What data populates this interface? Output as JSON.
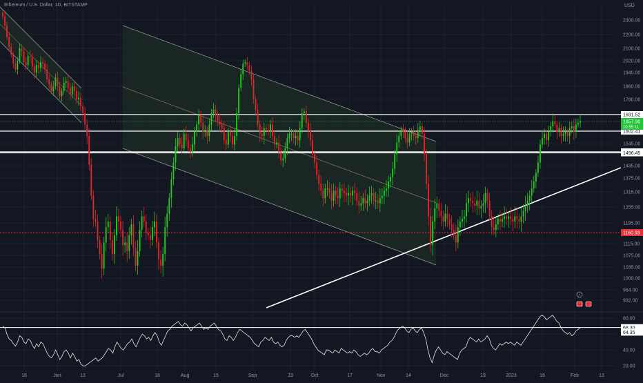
{
  "header": {
    "title": "Ethereum / U.S. Dollar, 1D, BITSTAMP"
  },
  "price_axis": {
    "unit": "USD"
  },
  "colors": {
    "background": "#131722",
    "up": "#26c826",
    "down": "#e3242b",
    "grid": "#1e222d",
    "channel_fill": "#1f3324",
    "channel_line": "#c8cfc0",
    "midline": "#b08f63",
    "current_label": "#23c43a",
    "red_label": "#e3303b",
    "rsi_line": "#e6e6e6"
  },
  "icons": [
    "lightning-icon",
    "calendar-flag-icon",
    "calendar-flag-icon"
  ],
  "chart_data": [
    {
      "type": "candlestick",
      "title": "",
      "x_tick_labels": [
        "16",
        "Jun",
        "13",
        "Jul",
        "18",
        "Aug",
        "15",
        "Sep",
        "19",
        "Oct",
        "17",
        "Nov",
        "14",
        "Dec",
        "19",
        "2023",
        "16",
        "Feb",
        "13"
      ],
      "y_tick_labels": [
        2300,
        2200,
        2100,
        2020,
        1940,
        1860,
        1780,
        1545,
        1435,
        1375,
        1315,
        1255,
        1195,
        1115,
        1075,
        1035,
        1000,
        964,
        932
      ],
      "y_tick_display": [
        "2300.00",
        "2200.00",
        "2100.00",
        "2020.00",
        "1940.00",
        "1860.00",
        "1780.00",
        "1545.00",
        "1435.00",
        "1375.00",
        "1315.00",
        "1255.00",
        "1195.00",
        "1115.00",
        "1075.00",
        "1035.00",
        "1000.00",
        "964.00",
        "932.00"
      ],
      "ylim": [
        905,
        2380
      ],
      "horizontal_lines": [
        {
          "value": 1691.52,
          "label": "1691.52"
        },
        {
          "value": 1602.41,
          "label": "1602.41"
        },
        {
          "value": 1501.53,
          "label": "1501.53"
        },
        {
          "value": 1496.45,
          "label": "1496.45"
        }
      ],
      "current_price": {
        "value": 1657.9,
        "label": "1657.90",
        "countdown": "10:55:11"
      },
      "dotted_level": {
        "value": 1160.93,
        "label": "1160.93"
      },
      "candles_close": [
        2320,
        2260,
        2180,
        2110,
        2060,
        2000,
        1960,
        2020,
        2100,
        2080,
        2010,
        1990,
        2050,
        2040,
        1980,
        1940,
        1990,
        1970,
        2010,
        2000,
        1960,
        1900,
        1870,
        1830,
        1860,
        1910,
        1860,
        1800,
        1830,
        1880,
        1890,
        1850,
        1810,
        1860,
        1830,
        1780,
        1790,
        1740,
        1700,
        1640,
        1580,
        1440,
        1300,
        1210,
        1200,
        1130,
        1080,
        1030,
        1120,
        1180,
        1200,
        1130,
        1080,
        1150,
        1220,
        1200,
        1170,
        1110,
        1120,
        1090,
        1150,
        1190,
        1100,
        1040,
        1090,
        1170,
        1220,
        1200,
        1160,
        1150,
        1130,
        1180,
        1200,
        1120,
        1060,
        1040,
        1080,
        1180,
        1230,
        1290,
        1370,
        1450,
        1530,
        1570,
        1540,
        1520,
        1590,
        1560,
        1520,
        1500,
        1540,
        1600,
        1640,
        1690,
        1650,
        1600,
        1610,
        1580,
        1640,
        1700,
        1720,
        1690,
        1660,
        1640,
        1620,
        1560,
        1540,
        1600,
        1580,
        1540,
        1580,
        1700,
        1850,
        1930,
        2000,
        2010,
        1990,
        1950,
        1900,
        1780,
        1720,
        1640,
        1590,
        1580,
        1620,
        1610,
        1600,
        1640,
        1580,
        1540,
        1550,
        1500,
        1460,
        1470,
        1520,
        1570,
        1590,
        1590,
        1570,
        1580,
        1560,
        1620,
        1700,
        1710,
        1650,
        1610,
        1560,
        1490,
        1450,
        1390,
        1350,
        1320,
        1290,
        1330,
        1330,
        1310,
        1280,
        1320,
        1300,
        1290,
        1330,
        1320,
        1310,
        1300,
        1310,
        1300,
        1320,
        1310,
        1280,
        1260,
        1270,
        1290,
        1270,
        1280,
        1300,
        1310,
        1280,
        1280,
        1270,
        1290,
        1300,
        1320,
        1330,
        1360,
        1380,
        1420,
        1490,
        1550,
        1580,
        1610,
        1600,
        1570,
        1550,
        1590,
        1600,
        1580,
        1570,
        1610,
        1630,
        1590,
        1490,
        1350,
        1220,
        1110,
        1200,
        1250,
        1270,
        1240,
        1220,
        1200,
        1230,
        1210,
        1190,
        1170,
        1150,
        1120,
        1180,
        1200,
        1210,
        1220,
        1270,
        1290,
        1280,
        1270,
        1260,
        1280,
        1250,
        1260,
        1270,
        1310,
        1280,
        1220,
        1180,
        1170,
        1190,
        1210,
        1200,
        1210,
        1220,
        1210,
        1220,
        1210,
        1200,
        1220,
        1210,
        1200,
        1220,
        1240,
        1260,
        1280,
        1300,
        1330,
        1360,
        1400,
        1450,
        1540,
        1570,
        1590,
        1560,
        1600,
        1630,
        1660,
        1640,
        1600,
        1620,
        1580,
        1590,
        1600,
        1580,
        1620,
        1630,
        1600,
        1640,
        1650,
        1660
      ]
    },
    {
      "type": "line",
      "title": "",
      "name": "RSI",
      "y_tick_labels": [
        80.0,
        60.0,
        40.0,
        20.0
      ],
      "y_tick_display": [
        "80.00",
        "60.00",
        "40.00",
        "20.00"
      ],
      "ylim": [
        15,
        88
      ],
      "guide_lines": [
        68.3
      ],
      "value_labels": [
        "68.30",
        "64.35"
      ],
      "series": [
        {
          "values": [
            70,
            68,
            60,
            54,
            52,
            48,
            45,
            50,
            58,
            56,
            50,
            48,
            54,
            52,
            46,
            42,
            48,
            44,
            50,
            48,
            42,
            36,
            32,
            30,
            34,
            40,
            34,
            28,
            32,
            38,
            40,
            36,
            30,
            36,
            32,
            26,
            28,
            22,
            20,
            20,
            22,
            24,
            26,
            28,
            30,
            26,
            28,
            30,
            34,
            38,
            42,
            40,
            36,
            44,
            50,
            46,
            42,
            40,
            44,
            48,
            50,
            54,
            48,
            44,
            50,
            56,
            60,
            58,
            54,
            56,
            52,
            58,
            62,
            58,
            50,
            46,
            52,
            58,
            64,
            66,
            70,
            72,
            74,
            76,
            72,
            70,
            74,
            72,
            68,
            64,
            68,
            70,
            72,
            74,
            70,
            66,
            68,
            66,
            70,
            72,
            74,
            70,
            66,
            64,
            60,
            54,
            52,
            58,
            56,
            52,
            56,
            62,
            66,
            64,
            62,
            60,
            58,
            56,
            52,
            48,
            46,
            44,
            50,
            52,
            56,
            54,
            52,
            56,
            50,
            48,
            50,
            46,
            44,
            46,
            52,
            56,
            58,
            58,
            56,
            58,
            56,
            60,
            64,
            66,
            62,
            58,
            54,
            48,
            44,
            40,
            38,
            36,
            34,
            40,
            40,
            38,
            36,
            40,
            38,
            36,
            42,
            40,
            38,
            36,
            38,
            36,
            40,
            38,
            34,
            32,
            34,
            36,
            34,
            36,
            40,
            42,
            38,
            38,
            36,
            40,
            42,
            44,
            46,
            50,
            52,
            56,
            62,
            66,
            68,
            70,
            68,
            64,
            62,
            66,
            68,
            64,
            62,
            66,
            68,
            62,
            54,
            40,
            30,
            24,
            34,
            40,
            44,
            40,
            36,
            34,
            38,
            36,
            34,
            32,
            30,
            28,
            36,
            40,
            42,
            44,
            52,
            56,
            54,
            52,
            50,
            54,
            50,
            52,
            54,
            58,
            54,
            46,
            42,
            40,
            44,
            48,
            46,
            48,
            50,
            48,
            50,
            48,
            46,
            50,
            48,
            46,
            50,
            54,
            58,
            62,
            66,
            70,
            74,
            78,
            82,
            84,
            82,
            78,
            80,
            82,
            84,
            80,
            76,
            74,
            68,
            64,
            62,
            60,
            62,
            58,
            60,
            64,
            66,
            68
          ]
        }
      ]
    }
  ]
}
